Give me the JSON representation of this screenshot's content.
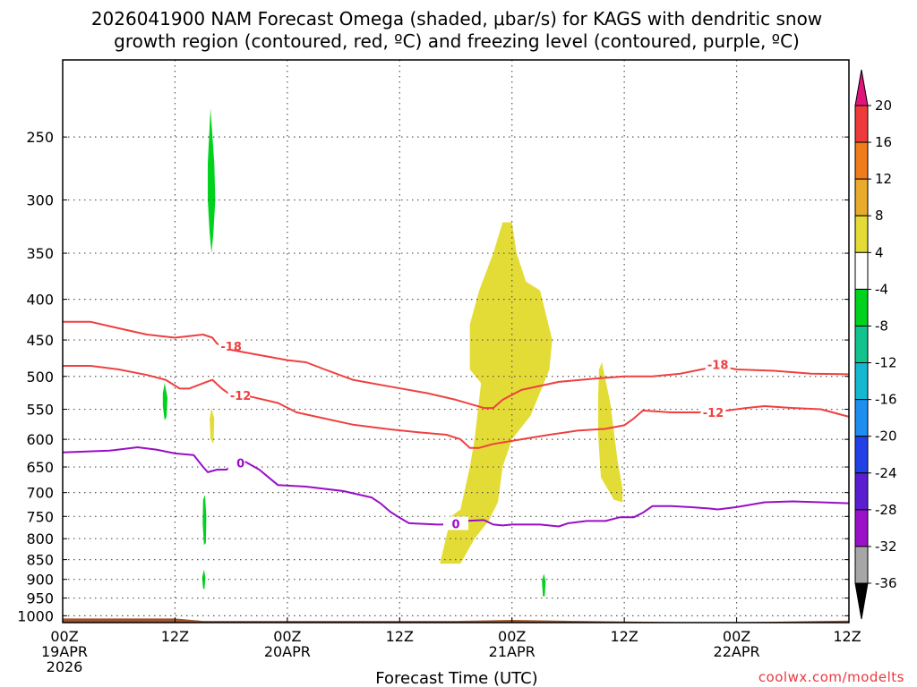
{
  "chart_data": {
    "type": "time-height cross-section",
    "title_line1": "2026041900 NAM Forecast Omega (shaded, μbar/s) for KAGS with dendritic snow",
    "title_line2": "growth region (contoured, red, ºC) and freezing level (contoured, purple, ºC)",
    "xlabel": "Forecast Time (UTC)",
    "credit": "coolwx.com/modelts",
    "x_ticks": [
      {
        "hour": 0,
        "line1": "00Z",
        "line2": "19APR",
        "line3": "2026"
      },
      {
        "hour": 12,
        "line1": "12Z",
        "line2": "",
        "line3": ""
      },
      {
        "hour": 24,
        "line1": "00Z",
        "line2": "20APR",
        "line3": ""
      },
      {
        "hour": 36,
        "line1": "12Z",
        "line2": "",
        "line3": ""
      },
      {
        "hour": 48,
        "line1": "00Z",
        "line2": "21APR",
        "line3": ""
      },
      {
        "hour": 60,
        "line1": "12Z",
        "line2": "",
        "line3": ""
      },
      {
        "hour": 72,
        "line1": "00Z",
        "line2": "22APR",
        "line3": ""
      },
      {
        "hour": 84,
        "line1": "12Z",
        "line2": "",
        "line3": ""
      }
    ],
    "y_ticks": [
      250,
      300,
      350,
      400,
      450,
      500,
      550,
      600,
      650,
      700,
      750,
      800,
      850,
      900,
      950,
      1000
    ],
    "xlim": [
      0,
      84
    ],
    "ylim_hpa": [
      200,
      1020
    ],
    "y_scale": "log",
    "grid": true,
    "colorbar": {
      "levels": [
        "20",
        "16",
        "12",
        "8",
        "4",
        "-4",
        "-8",
        "-12",
        "-16",
        "-20",
        "-24",
        "-28",
        "-32",
        "-36"
      ],
      "colors": [
        "#e0157a",
        "#ee3a3a",
        "#f07c1c",
        "#e8ab2a",
        "#e4dc36",
        "#ffffff",
        "#00d21e",
        "#12c38e",
        "#15b8cf",
        "#1e8ef0",
        "#2140e6",
        "#5a1ed0",
        "#9b0fc8",
        "#a6a6a6",
        "#000000"
      ]
    },
    "contours": [
      {
        "label": "-18",
        "color": "#ef4040",
        "label_at": [
          18,
          458
        ],
        "points": [
          [
            0,
            427
          ],
          [
            3,
            427
          ],
          [
            6,
            435
          ],
          [
            9,
            443
          ],
          [
            12,
            447
          ],
          [
            13.5,
            445
          ],
          [
            15,
            443
          ],
          [
            16,
            447
          ],
          [
            16.5,
            455
          ],
          [
            17,
            457
          ]
        ]
      },
      {
        "label": "-18",
        "color": "#ef4040",
        "label_at": [
          70,
          483
        ],
        "points": [
          [
            18,
            463
          ],
          [
            21,
            470
          ],
          [
            24,
            477
          ],
          [
            26,
            480
          ],
          [
            28,
            490
          ],
          [
            31,
            505
          ],
          [
            35,
            515
          ],
          [
            39,
            525
          ],
          [
            42,
            535
          ],
          [
            45,
            548
          ],
          [
            46,
            548
          ],
          [
            47,
            535
          ],
          [
            49,
            520
          ],
          [
            53,
            508
          ],
          [
            57,
            503
          ],
          [
            60,
            500
          ],
          [
            63,
            500
          ],
          [
            66,
            496
          ],
          [
            69,
            488
          ],
          [
            70.5,
            486
          ],
          [
            72,
            490
          ],
          [
            76,
            492
          ],
          [
            80,
            496
          ],
          [
            84,
            497
          ]
        ]
      },
      {
        "label": "-12",
        "color": "#ef4040",
        "label_at": [
          19,
          528
        ],
        "points": [
          [
            0,
            485
          ],
          [
            3,
            485
          ],
          [
            6,
            490
          ],
          [
            9,
            498
          ],
          [
            11,
            505
          ],
          [
            12.5,
            518
          ],
          [
            13.5,
            518
          ],
          [
            15,
            510
          ],
          [
            16,
            505
          ],
          [
            17,
            518
          ],
          [
            18,
            528
          ]
        ]
      },
      {
        "label": "-12",
        "color": "#ef4040",
        "label_at": [
          69.5,
          555
        ],
        "points": [
          [
            20,
            530
          ],
          [
            23,
            540
          ],
          [
            25,
            555
          ],
          [
            28,
            565
          ],
          [
            31,
            575
          ],
          [
            35,
            583
          ],
          [
            38,
            588
          ],
          [
            41,
            592
          ],
          [
            42.5,
            600
          ],
          [
            43.5,
            615
          ],
          [
            44.5,
            615
          ],
          [
            46,
            608
          ],
          [
            49,
            600
          ],
          [
            52,
            592
          ],
          [
            55,
            585
          ],
          [
            58,
            582
          ],
          [
            60,
            576
          ],
          [
            61,
            565
          ],
          [
            62,
            552
          ],
          [
            65,
            555
          ],
          [
            68,
            555
          ],
          [
            71,
            552
          ],
          [
            73,
            548
          ],
          [
            75,
            545
          ],
          [
            78,
            548
          ],
          [
            81,
            550
          ],
          [
            84,
            562
          ]
        ]
      },
      {
        "label": "0",
        "color": "#9a0ec8",
        "label_at": [
          19,
          642
        ],
        "points": [
          [
            0,
            623
          ],
          [
            5,
            620
          ],
          [
            8,
            614
          ],
          [
            10,
            618
          ],
          [
            12,
            625
          ],
          [
            14,
            628
          ],
          [
            15,
            650
          ],
          [
            15.5,
            660
          ],
          [
            16.5,
            655
          ],
          [
            17.5,
            655
          ],
          [
            18.5,
            640
          ]
        ]
      },
      {
        "label": "0",
        "color": "#9a0ec8",
        "label_at": [
          42,
          766
        ],
        "points": [
          [
            19.5,
            640
          ],
          [
            21,
            655
          ],
          [
            22,
            670
          ],
          [
            23,
            685
          ],
          [
            26,
            688
          ],
          [
            30,
            697
          ],
          [
            33,
            710
          ],
          [
            34,
            723
          ],
          [
            35,
            740
          ],
          [
            36,
            753
          ],
          [
            37,
            765
          ],
          [
            40,
            768
          ],
          [
            41,
            768
          ],
          [
            43,
            760
          ],
          [
            45,
            758
          ],
          [
            46,
            768
          ],
          [
            47,
            770
          ],
          [
            48,
            768
          ],
          [
            51,
            768
          ],
          [
            53,
            772
          ],
          [
            54,
            765
          ],
          [
            56,
            760
          ],
          [
            58,
            760
          ],
          [
            59.5,
            752
          ],
          [
            61,
            752
          ],
          [
            62,
            742
          ],
          [
            63,
            728
          ],
          [
            65,
            728
          ],
          [
            67,
            730
          ],
          [
            69,
            733
          ],
          [
            70,
            735
          ],
          [
            72,
            730
          ],
          [
            75,
            720
          ],
          [
            78,
            718
          ],
          [
            81,
            720
          ],
          [
            84,
            722
          ]
        ]
      }
    ],
    "shaded_regions": [
      {
        "class": "4 to 8",
        "color": "#e4dc36",
        "points": [
          [
            40.3,
            860
          ],
          [
            42.5,
            860
          ],
          [
            44,
            800
          ],
          [
            45.5,
            760
          ],
          [
            46.5,
            720
          ],
          [
            47,
            650
          ],
          [
            48,
            600
          ],
          [
            50,
            560
          ],
          [
            52,
            490
          ],
          [
            52.3,
            450
          ],
          [
            51,
            390
          ],
          [
            49.5,
            380
          ],
          [
            48.5,
            350
          ],
          [
            48,
            320
          ],
          [
            47,
            320
          ],
          [
            46,
            350
          ],
          [
            44.5,
            390
          ],
          [
            43.5,
            430
          ],
          [
            43.5,
            490
          ],
          [
            44.7,
            510
          ],
          [
            44,
            600
          ],
          [
            43.5,
            650
          ],
          [
            42.5,
            735
          ],
          [
            41.5,
            750
          ]
        ]
      },
      {
        "class": "4 to 8",
        "color": "#e4dc36",
        "points": [
          [
            45,
            505
          ],
          [
            46,
            490
          ],
          [
            47,
            505
          ],
          [
            46.5,
            545
          ],
          [
            45.5,
            540
          ]
        ]
      },
      {
        "class": "4 to 8",
        "color": "#e4dc36",
        "points": [
          [
            57.6,
            480
          ],
          [
            58.5,
            540
          ],
          [
            59.3,
            640
          ],
          [
            59.8,
            690
          ],
          [
            59.8,
            720
          ],
          [
            58.9,
            715
          ],
          [
            57.5,
            670
          ],
          [
            57.2,
            590
          ],
          [
            57.2,
            530
          ],
          [
            57.3,
            490
          ]
        ]
      },
      {
        "class": "4 to 8",
        "color": "#e4dc36",
        "points": [
          [
            15.9,
            548
          ],
          [
            16.2,
            565
          ],
          [
            16.1,
            608
          ],
          [
            15.8,
            600
          ],
          [
            15.7,
            565
          ]
        ]
      },
      {
        "class": "-8 to -4",
        "color": "#00d21e",
        "points": [
          [
            15.8,
            230
          ],
          [
            16.2,
            270
          ],
          [
            16.3,
            300
          ],
          [
            16.1,
            330
          ],
          [
            15.9,
            350
          ],
          [
            15.7,
            330
          ],
          [
            15.5,
            300
          ],
          [
            15.5,
            270
          ]
        ]
      },
      {
        "class": "-8 to -4",
        "color": "#00d21e",
        "points": [
          [
            10.9,
            510
          ],
          [
            11.2,
            532
          ],
          [
            11.1,
            562
          ],
          [
            10.9,
            568
          ],
          [
            10.7,
            545
          ],
          [
            10.7,
            525
          ]
        ]
      },
      {
        "class": "-8 to -4",
        "color": "#00d21e",
        "points": [
          [
            15.2,
            705
          ],
          [
            15.35,
            750
          ],
          [
            15.3,
            810
          ],
          [
            15.1,
            815
          ],
          [
            14.95,
            765
          ],
          [
            15,
            715
          ]
        ]
      },
      {
        "class": "-8 to -4",
        "color": "#00d21e",
        "points": [
          [
            15.1,
            875
          ],
          [
            15.25,
            895
          ],
          [
            15.15,
            925
          ],
          [
            15,
            925
          ],
          [
            14.9,
            895
          ]
        ]
      },
      {
        "class": "-8 to -4",
        "color": "#00d21e",
        "points": [
          [
            51.4,
            885
          ],
          [
            51.6,
            905
          ],
          [
            51.5,
            945
          ],
          [
            51.3,
            945
          ],
          [
            51.2,
            905
          ]
        ]
      }
    ],
    "terrain": {
      "color": "#a0522d",
      "top_hpa": [
        [
          0,
          1008
        ],
        [
          12,
          1008
        ],
        [
          15,
          1015
        ],
        [
          30,
          1015
        ],
        [
          42,
          1015
        ],
        [
          48,
          1012
        ],
        [
          55,
          1015
        ],
        [
          70,
          1022
        ],
        [
          84,
          1014
        ]
      ]
    }
  }
}
